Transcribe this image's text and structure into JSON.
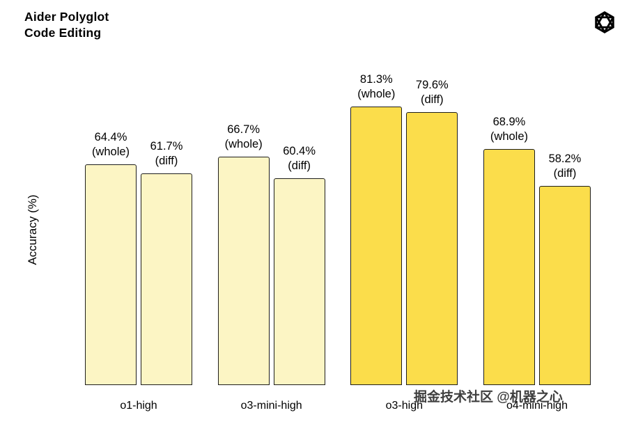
{
  "header": {
    "title_line1": "Aider Polyglot",
    "title_line2": "Code Editing",
    "logo": "openai-logo"
  },
  "watermark": "掘金技术社区 @机器之心",
  "chart_data": {
    "type": "bar",
    "title": "Aider Polyglot Code Editing",
    "xlabel": "",
    "ylabel": "Accuracy (%)",
    "ylim": [
      0,
      100
    ],
    "grid": false,
    "legend": "none",
    "categories": [
      "o1-high",
      "o3-mini-high",
      "o3-high",
      "o4-mini-high"
    ],
    "series": [
      {
        "name": "whole",
        "values": [
          64.4,
          66.7,
          81.3,
          68.9
        ]
      },
      {
        "name": "diff",
        "values": [
          61.7,
          60.4,
          79.6,
          58.2
        ]
      }
    ],
    "bar_label_format": "value% newline (series)",
    "colors": {
      "pale": "#FCF5C4",
      "bright": "#FBDD4B",
      "border": "#1d1d1b"
    },
    "group_color_keys": [
      "pale",
      "pale",
      "bright",
      "bright"
    ]
  }
}
